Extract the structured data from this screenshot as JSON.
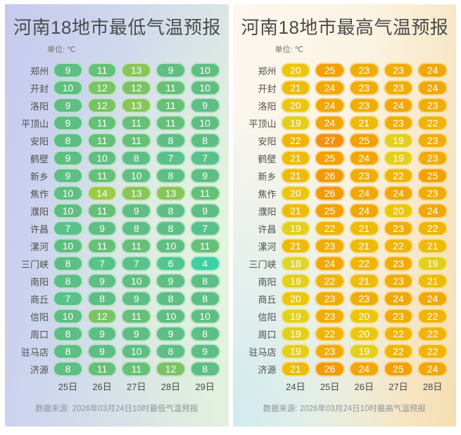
{
  "chart_data": [
    {
      "type": "heatmap",
      "title": "河南18地市最低气温预报",
      "unit_label": "单位: ℃",
      "unit": "℃",
      "x": [
        "25日",
        "26日",
        "27日",
        "28日",
        "29日"
      ],
      "y": [
        "郑州",
        "开封",
        "洛阳",
        "平顶山",
        "安阳",
        "鹤壁",
        "新乡",
        "焦作",
        "濮阳",
        "许昌",
        "漯河",
        "三门峡",
        "南阳",
        "商丘",
        "信阳",
        "周口",
        "驻马店",
        "济源"
      ],
      "values": [
        [
          9,
          11,
          13,
          9,
          10
        ],
        [
          10,
          12,
          12,
          11,
          10
        ],
        [
          9,
          12,
          13,
          11,
          9
        ],
        [
          9,
          11,
          11,
          11,
          10
        ],
        [
          8,
          11,
          11,
          8,
          8
        ],
        [
          9,
          10,
          8,
          7,
          7
        ],
        [
          9,
          11,
          10,
          8,
          9
        ],
        [
          10,
          14,
          13,
          13,
          11
        ],
        [
          10,
          11,
          9,
          8,
          9
        ],
        [
          7,
          9,
          8,
          8,
          7
        ],
        [
          10,
          11,
          11,
          10,
          11
        ],
        [
          8,
          7,
          7,
          6,
          4
        ],
        [
          8,
          9,
          10,
          9,
          8
        ],
        [
          7,
          8,
          9,
          8,
          8
        ],
        [
          10,
          12,
          11,
          10,
          10
        ],
        [
          8,
          9,
          9,
          9,
          8
        ],
        [
          8,
          9,
          10,
          8,
          9
        ],
        [
          8,
          11,
          11,
          12,
          8
        ]
      ],
      "value_range": [
        4,
        14
      ],
      "source": "数据来源: 2026年03月24日10时最低气温预报",
      "legend": "color encodes minimum temperature: teal (cold) to yellow-green (warm)"
    },
    {
      "type": "heatmap",
      "title": "河南18地市最高气温预报",
      "unit_label": "单位: ℃",
      "unit": "℃",
      "x": [
        "24日",
        "25日",
        "26日",
        "27日",
        "28日"
      ],
      "y": [
        "郑州",
        "开封",
        "洛阳",
        "平顶山",
        "安阳",
        "鹤壁",
        "新乡",
        "焦作",
        "濮阳",
        "许昌",
        "漯河",
        "三门峡",
        "南阳",
        "商丘",
        "信阳",
        "周口",
        "驻马店",
        "济源"
      ],
      "values": [
        [
          20,
          25,
          23,
          23,
          24
        ],
        [
          21,
          24,
          23,
          23,
          24
        ],
        [
          20,
          24,
          23,
          24,
          23
        ],
        [
          19,
          24,
          21,
          23,
          22
        ],
        [
          22,
          27,
          25,
          19,
          23
        ],
        [
          21,
          25,
          24,
          19,
          23
        ],
        [
          21,
          26,
          23,
          22,
          25
        ],
        [
          20,
          26,
          24,
          24,
          23
        ],
        [
          21,
          25,
          24,
          20,
          24
        ],
        [
          19,
          22,
          21,
          23,
          22
        ],
        [
          21,
          23,
          21,
          22,
          21
        ],
        [
          18,
          24,
          22,
          23,
          19
        ],
        [
          19,
          22,
          21,
          23,
          21
        ],
        [
          20,
          23,
          23,
          24,
          24
        ],
        [
          19,
          23,
          20,
          23,
          22
        ],
        [
          19,
          22,
          20,
          22,
          22
        ],
        [
          19,
          23,
          19,
          22,
          22
        ],
        [
          21,
          26,
          24,
          25,
          24
        ]
      ],
      "value_range": [
        18,
        27
      ],
      "source": "数据来源: 2026年03月24日10时最高气温预报",
      "legend": "color encodes maximum temperature: yellow (mild) to deep orange (hot)"
    }
  ],
  "theme": {
    "title_color": "#4b4b4b",
    "city_label_color": "#4f4f4f",
    "date_label_color": "#4a4a4a",
    "source_color": "#90949b",
    "panels": [
      {
        "default_color": "#5dbe85",
        "value_colors": {
          "4": "#3ed0a2",
          "5": "#49ca97",
          "6": "#53c78e",
          "7": "#59c28a",
          "8": "#5dbf85",
          "9": "#5ebe83",
          "10": "#5fbe81",
          "11": "#66c078",
          "12": "#7ac366",
          "13": "#88c65a",
          "14": "#9cca4a"
        }
      },
      {
        "default_color": "#f0ad07",
        "value_colors": {
          "18": "#ded62e",
          "19": "#e3cf1e",
          "20": "#ecc60d",
          "21": "#eebb09",
          "22": "#f0b408",
          "23": "#f0ad07",
          "24": "#f1a706",
          "25": "#f2a005",
          "26": "#f29a07",
          "27": "#f19013"
        }
      }
    ]
  }
}
